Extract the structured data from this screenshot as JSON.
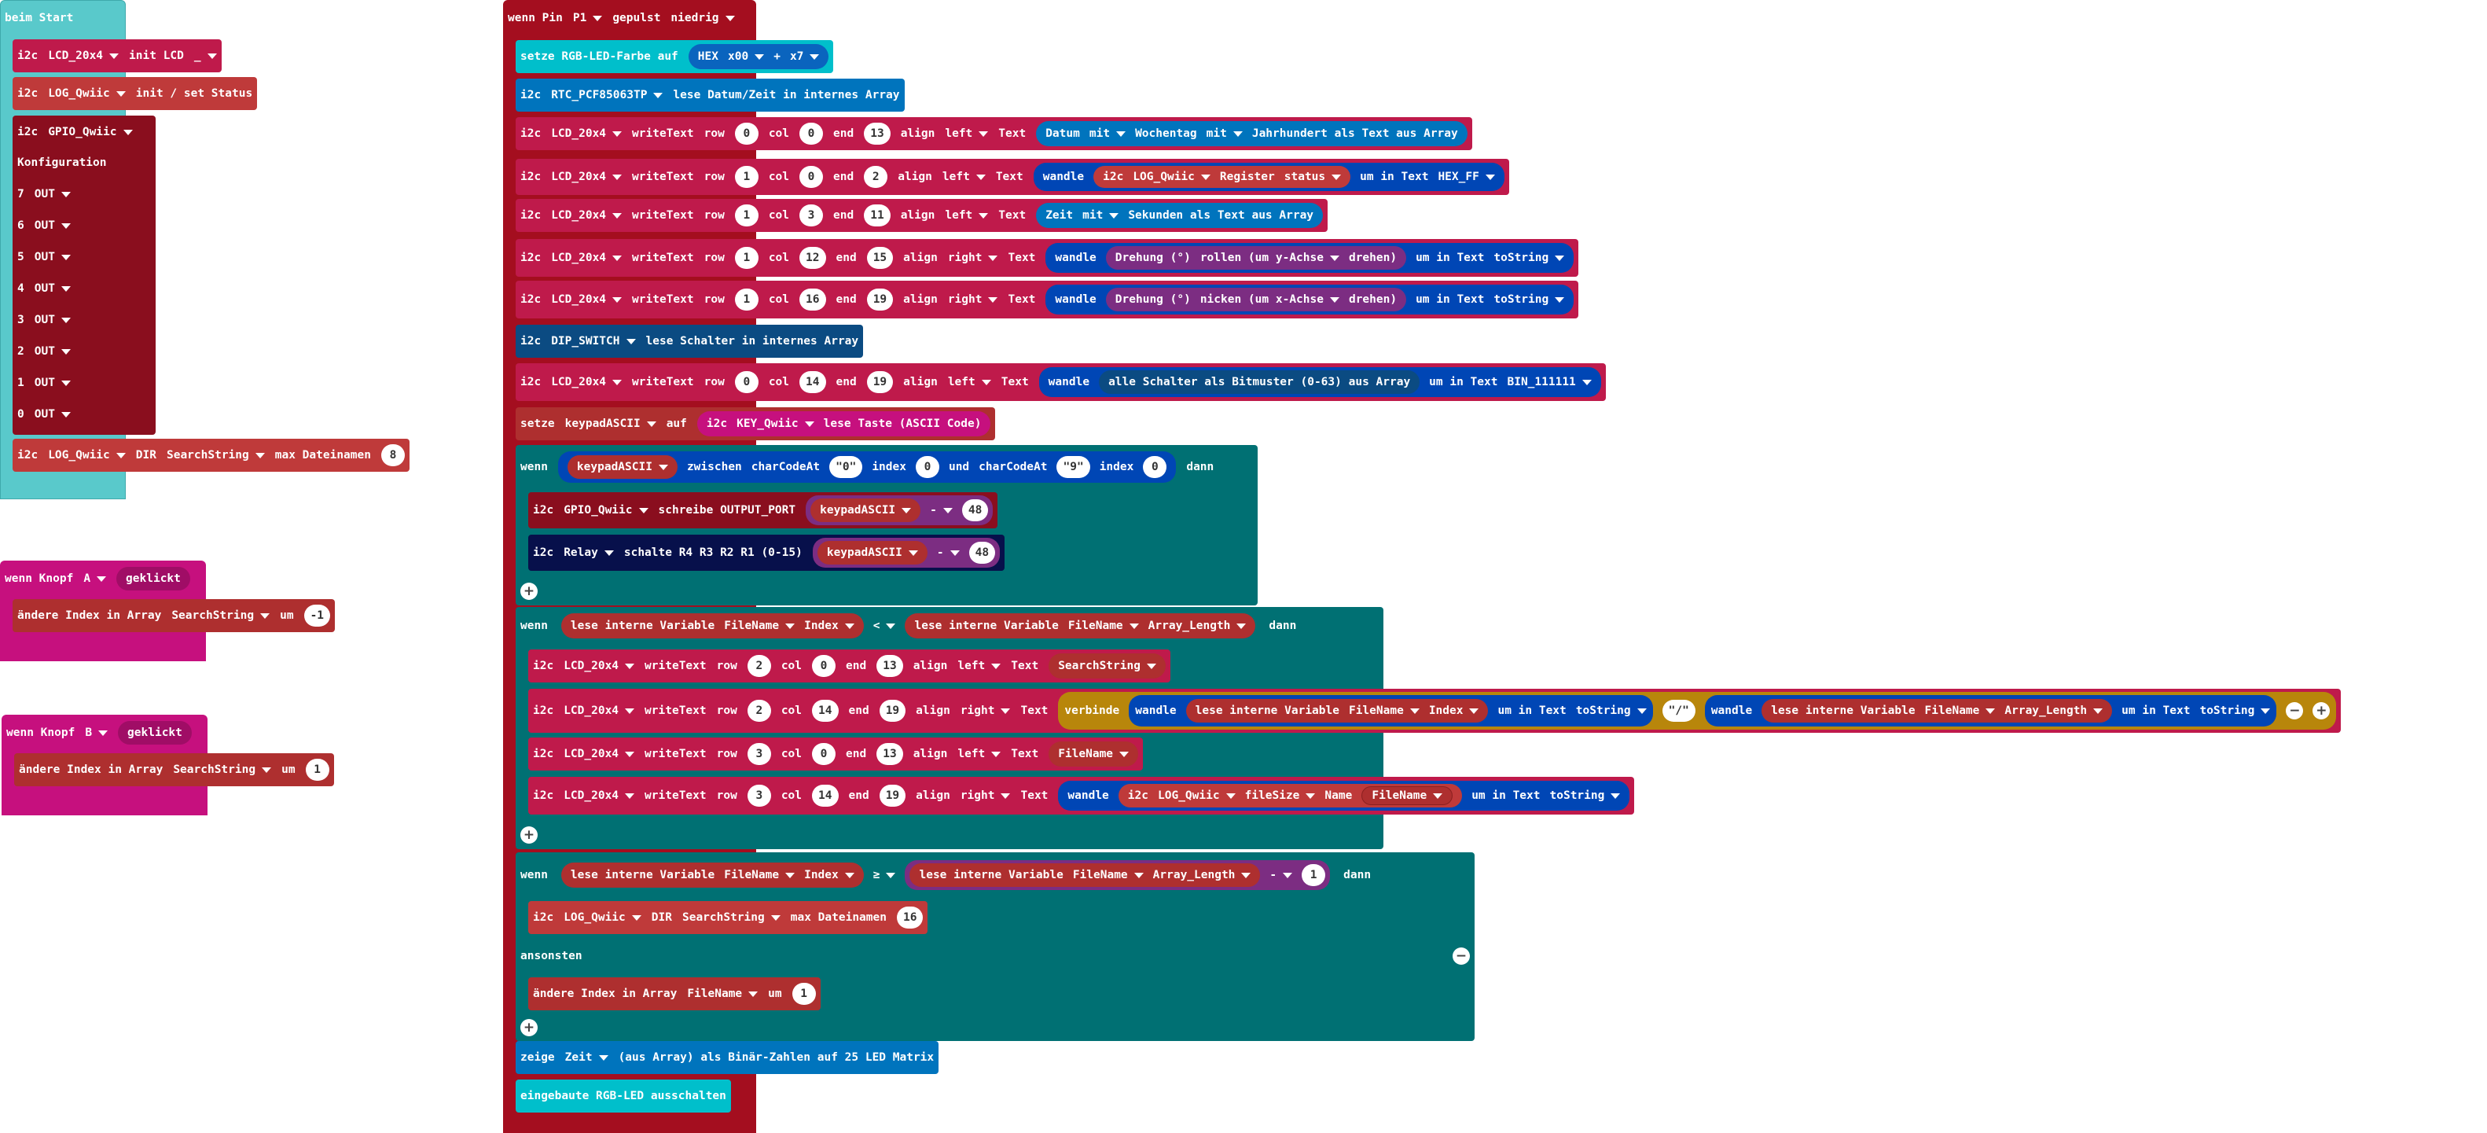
{
  "colors": {
    "basic": "#1EA3A3",
    "basic_hat": "#59C9CB",
    "i2c_lcd": "#BF1A4B",
    "i2c_log": "#BF3A3A",
    "i2c_gpio": "#8A0E1E",
    "input": "#C6107E",
    "variables": "#AE2F2F",
    "logic": "#007073",
    "math": "#7C2D82",
    "text": "#0046B5",
    "rtc": "#0074BD",
    "relay": "#07104B",
    "light": "#00BFCB",
    "pins": "#A40E1F",
    "rgb_hex": "#0A64BE",
    "dip": "#0B4B82"
  },
  "start": {
    "title": "beim Start",
    "lcd_init": {
      "prefix": "i2c",
      "device": "LCD_20x4",
      "action": "init LCD",
      "value": "_"
    },
    "log_init": {
      "prefix": "i2c",
      "device": "LOG_Qwiic",
      "action": "init / set Status"
    },
    "gpio": {
      "prefix": "i2c",
      "device": "GPIO_Qwiic",
      "config_label": "Konfiguration",
      "pins": [
        {
          "num": "7",
          "mode": "OUT"
        },
        {
          "num": "6",
          "mode": "OUT"
        },
        {
          "num": "5",
          "mode": "OUT"
        },
        {
          "num": "4",
          "mode": "OUT"
        },
        {
          "num": "3",
          "mode": "OUT"
        },
        {
          "num": "2",
          "mode": "OUT"
        },
        {
          "num": "1",
          "mode": "OUT"
        },
        {
          "num": "0",
          "mode": "OUT"
        }
      ]
    },
    "dir": {
      "prefix": "i2c",
      "device": "LOG_Qwiic",
      "action": "DIR",
      "var": "SearchString",
      "label": "max Dateinamen",
      "value": "8"
    }
  },
  "button_a": {
    "title": "wenn Knopf",
    "button": "A",
    "event": "geklickt",
    "change": {
      "label": "ändere Index in Array",
      "var": "SearchString",
      "by": "um",
      "value": "-1"
    }
  },
  "button_b": {
    "title": "wenn Knopf",
    "button": "B",
    "event": "geklickt",
    "change": {
      "label": "ändere Index in Array",
      "var": "SearchString",
      "by": "um",
      "value": "1"
    }
  },
  "pin_event": {
    "label": "wenn Pin",
    "pin": "P1",
    "event": "gepulst",
    "level": "niedrig"
  },
  "rgb": {
    "label": "setze RGB-LED-Farbe auf",
    "hex": "HEX",
    "x00": "x00",
    "plus": "+",
    "x7": "x7"
  },
  "rtc": {
    "prefix": "i2c",
    "device": "RTC_PCF85063TP",
    "action": "lese Datum/Zeit in internes Array"
  },
  "common": {
    "i2c": "i2c",
    "writeText": "writeText",
    "row": "row",
    "col": "col",
    "end": "end",
    "align": "align",
    "text": "Text",
    "wandle": "wandle",
    "um_in_text": "um in Text",
    "lcd": "LCD_20x4",
    "log": "LOG_Qwiic",
    "left": "left",
    "right": "right",
    "toString": "toString",
    "lese_var": "lese interne Variable",
    "filename": "FileName",
    "index": "Index",
    "array_length": "Array_Length",
    "wenn": "wenn",
    "dann": "dann",
    "mit": "mit"
  },
  "w1": {
    "row": "0",
    "col": "0",
    "end": "13",
    "align": "left",
    "value": {
      "a": "Datum",
      "b": "mit",
      "c": "Wochentag",
      "d": "mit",
      "e": "Jahrhundert als Text aus Array"
    }
  },
  "w2": {
    "row": "1",
    "col": "0",
    "end": "2",
    "align": "left",
    "value": {
      "register": "Register",
      "status": "status",
      "format": "HEX_FF"
    }
  },
  "w3": {
    "row": "1",
    "col": "3",
    "end": "11",
    "align": "left",
    "value": {
      "a": "Zeit",
      "b": "mit",
      "c": "Sekunden als Text aus Array"
    }
  },
  "w4": {
    "row": "1",
    "col": "12",
    "end": "15",
    "align": "right",
    "value": {
      "a": "Drehung (°)",
      "b": "rollen (um y-Achse",
      "c": "drehen)"
    }
  },
  "w5": {
    "row": "1",
    "col": "16",
    "end": "19",
    "align": "right",
    "value": {
      "a": "Drehung (°)",
      "b": "nicken (um x-Achse",
      "c": "drehen)"
    }
  },
  "dip": {
    "prefix": "i2c",
    "device": "DIP_SWITCH",
    "action": "lese Schalter in internes Array"
  },
  "w6": {
    "row": "0",
    "col": "14",
    "end": "19",
    "align": "left",
    "value": {
      "a": "alle Schalter als Bitmuster (0-63) aus Array",
      "format": "BIN_111111"
    }
  },
  "setkey": {
    "label": "setze",
    "var": "keypadASCII",
    "to": "auf",
    "prefix": "i2c",
    "device": "KEY_Qwiic",
    "action": "lese Taste (ASCII Code)"
  },
  "if1": {
    "var": "keypadASCII",
    "between": "zwischen",
    "charcode": "charCodeAt",
    "c1": "\"0\"",
    "index": "index",
    "i1": "0",
    "and": "und",
    "c2": "\"9\"",
    "i2": "0",
    "gpio": {
      "prefix": "i2c",
      "device": "GPIO_Qwiic",
      "action": "schreibe OUTPUT_PORT",
      "var": "keypadASCII",
      "op": "-",
      "value": "48"
    },
    "relay": {
      "prefix": "i2c",
      "device": "Relay",
      "action": "schalte R4 R3 R2 R1 (0-15)",
      "var": "keypadASCII",
      "op": "-",
      "value": "48"
    }
  },
  "if2": {
    "op": "<",
    "c1": {
      "row": "2",
      "col": "0",
      "end": "13",
      "align": "left",
      "var": "SearchString"
    },
    "c2": {
      "row": "2",
      "col": "14",
      "end": "19",
      "align": "right",
      "join": "verbinde",
      "sep": "\"/\""
    },
    "c3": {
      "row": "3",
      "col": "0",
      "end": "13",
      "align": "left",
      "var": "FileName"
    },
    "c4": {
      "row": "3",
      "col": "14",
      "end": "19",
      "align": "right",
      "fs": "fileSize",
      "name": "Name",
      "var": "FileName"
    }
  },
  "if3": {
    "op": "≥",
    "minus": "-",
    "value": "1",
    "dir": {
      "prefix": "i2c",
      "device": "LOG_Qwiic",
      "action": "DIR",
      "var": "SearchString",
      "label": "max Dateinamen",
      "value": "16"
    },
    "else": "ansonsten",
    "change": {
      "label": "ändere Index in Array",
      "var": "FileName",
      "by": "um",
      "value": "1"
    }
  },
  "show": {
    "label": "zeige",
    "var": "Zeit",
    "rest": "(aus Array) als Binär-Zahlen auf 25 LED Matrix"
  },
  "rgb_off": {
    "label": "eingebaute RGB-LED ausschalten"
  }
}
